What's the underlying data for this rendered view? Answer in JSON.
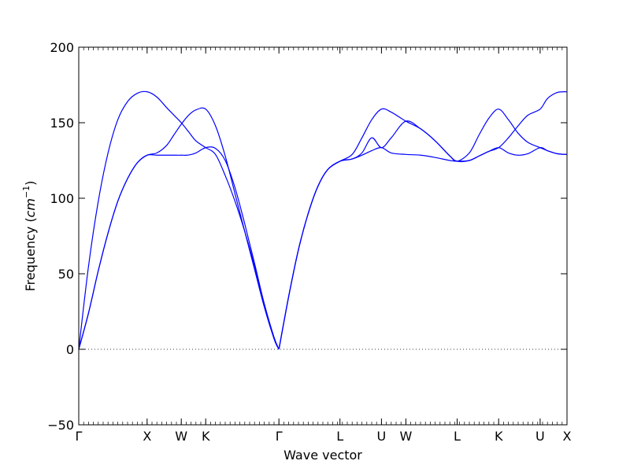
{
  "chart_data": {
    "type": "line",
    "title": "",
    "xlabel": "Wave vector",
    "ylabel": {
      "text": "Frequency (",
      "unit_base": "cm",
      "unit_exp": "−1",
      "close": ")"
    },
    "ylim": [
      -50,
      200
    ],
    "yticks": [
      "−50",
      "0",
      "50",
      "100",
      "150",
      "200"
    ],
    "ytick_values": [
      -50,
      0,
      50,
      100,
      150,
      200
    ],
    "xlim": [
      0,
      100
    ],
    "xtick_values": [
      0,
      14,
      21,
      26,
      41,
      53.5,
      62,
      67,
      77.5,
      86,
      94.5,
      100
    ],
    "xticks": [
      "Γ",
      "X",
      "W",
      "K",
      "Γ",
      "L",
      "U",
      "W",
      "L",
      "K",
      "U",
      "X"
    ],
    "zero_line": true,
    "color": "#0000ff",
    "series": [
      {
        "x": [
          0,
          2,
          4,
          6,
          8,
          10,
          12,
          14,
          16,
          18,
          19.5,
          21,
          22.5,
          24,
          26,
          28,
          30,
          32,
          34,
          36,
          38,
          40,
          41
        ],
        "y": [
          0,
          55,
          98,
          130,
          152,
          164,
          169.5,
          170.5,
          167,
          160,
          155,
          150,
          144,
          138,
          133.5,
          129,
          115,
          98,
          78,
          55,
          30,
          8,
          0
        ]
      },
      {
        "x": [
          0,
          2,
          4,
          6,
          8,
          10,
          12,
          14,
          16,
          18,
          19.5,
          21,
          22.5,
          24,
          26,
          28,
          30,
          32,
          34,
          36,
          38,
          40,
          41
        ],
        "y": [
          0,
          24,
          52,
          77,
          98,
          113,
          123.5,
          128.5,
          130,
          135,
          142,
          149,
          155,
          158.5,
          159,
          148,
          128,
          103,
          78,
          53,
          28,
          7,
          0
        ]
      },
      {
        "x": [
          0,
          2,
          4,
          6,
          8,
          10,
          12,
          14,
          16,
          18,
          19.5,
          21,
          22.5,
          24,
          26,
          28,
          30,
          32,
          34,
          36,
          38,
          40,
          41
        ],
        "y": [
          0,
          24,
          52,
          77,
          98,
          113,
          123.5,
          128.5,
          128.5,
          128.5,
          128.5,
          128.5,
          128.6,
          130,
          133.5,
          133,
          125,
          107,
          83,
          57,
          30,
          7,
          0
        ]
      },
      {
        "x": [
          41,
          43,
          45,
          47,
          49,
          51,
          53.5,
          56,
          58,
          60,
          62,
          64,
          67,
          70,
          73,
          76,
          77.5,
          80,
          82,
          84,
          86,
          88,
          90,
          92,
          94.5,
          96,
          98,
          100
        ],
        "y": [
          0,
          35,
          66,
          90,
          108,
          119,
          124.5,
          126,
          128.5,
          131.5,
          133.5,
          130,
          129,
          128.5,
          127,
          125,
          124.5,
          125,
          128,
          131,
          133.5,
          130,
          128.5,
          129.5,
          133.5,
          131.5,
          129.5,
          129
        ]
      },
      {
        "x": [
          41,
          43,
          45,
          47,
          49,
          51,
          53.5,
          56,
          58,
          60,
          62,
          64,
          67,
          70,
          73,
          76,
          77.5,
          80,
          82,
          84,
          86,
          88,
          90,
          92,
          94.5,
          96,
          98,
          100
        ],
        "y": [
          0,
          35,
          66,
          90,
          108,
          119,
          124.5,
          126,
          130,
          140,
          133.5,
          140,
          151,
          146,
          138,
          128,
          124.5,
          125,
          128,
          131,
          133.5,
          140,
          148,
          155,
          159,
          166,
          170,
          170.5
        ]
      },
      {
        "x": [
          41,
          43,
          45,
          47,
          49,
          51,
          53.5,
          56,
          58,
          60,
          62,
          64,
          67,
          70,
          73,
          76,
          77.5,
          80,
          82,
          84,
          86,
          88,
          90,
          92,
          94.5,
          96,
          98,
          100
        ],
        "y": [
          0,
          35,
          66,
          90,
          108,
          119,
          124.5,
          129,
          140,
          152,
          159,
          157,
          151,
          146,
          138,
          128,
          124.5,
          130,
          142,
          153,
          159,
          152,
          143,
          137,
          133.5,
          131.5,
          129.5,
          129
        ]
      }
    ]
  }
}
